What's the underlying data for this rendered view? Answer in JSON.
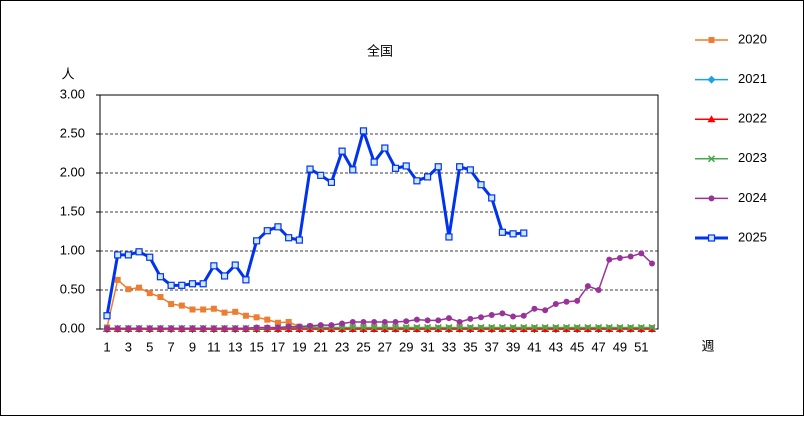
{
  "chart_data": {
    "type": "line",
    "title": "全国",
    "y_label": "人",
    "x_label": "週",
    "x": [
      1,
      2,
      3,
      4,
      5,
      6,
      7,
      8,
      9,
      10,
      11,
      12,
      13,
      14,
      15,
      16,
      17,
      18,
      19,
      20,
      21,
      22,
      23,
      24,
      25,
      26,
      27,
      28,
      29,
      30,
      31,
      32,
      33,
      34,
      35,
      36,
      37,
      38,
      39,
      40,
      41,
      42,
      43,
      44,
      45,
      46,
      47,
      48,
      49,
      50,
      51,
      52
    ],
    "xlim": [
      1,
      52
    ],
    "xticks": [
      1,
      3,
      5,
      7,
      9,
      11,
      13,
      15,
      17,
      19,
      21,
      23,
      25,
      27,
      29,
      31,
      33,
      35,
      37,
      39,
      41,
      43,
      45,
      47,
      49,
      51
    ],
    "ylim": [
      0,
      3
    ],
    "yticks": [
      {
        "value": 0,
        "label": "0.00"
      },
      {
        "value": 0.5,
        "label": "0.50"
      },
      {
        "value": 1,
        "label": "1.00"
      },
      {
        "value": 1.5,
        "label": "1.50"
      },
      {
        "value": 2,
        "label": "2.00"
      },
      {
        "value": 2.5,
        "label": "2.50"
      },
      {
        "value": 3,
        "label": "3.00"
      }
    ],
    "grid": true,
    "legend": "right",
    "series": [
      {
        "name": "2020",
        "color": "#ed7d31",
        "marker": "square",
        "values": [
          0.02,
          0.63,
          0.51,
          0.53,
          0.46,
          0.41,
          0.32,
          0.3,
          0.25,
          0.25,
          0.26,
          0.21,
          0.22,
          0.17,
          0.15,
          0.12,
          0.08,
          0.09,
          0.03,
          0.03,
          0.02,
          0.02,
          0.01,
          0.01,
          0.01,
          0.01,
          0.01,
          0.01,
          0.01,
          0.01,
          0.01,
          0.01,
          0.01,
          0.01,
          0.01,
          0.01,
          0.01,
          0.01,
          0.01,
          0.01,
          0.01,
          0.01,
          0.01,
          0.01,
          0.01,
          0.01,
          0.01,
          0.01,
          0.01,
          0.01,
          0.01,
          0.01
        ]
      },
      {
        "name": "2021",
        "color": "#1fa3e0",
        "marker": "diamond",
        "values": [
          0,
          0,
          0,
          0,
          0,
          0,
          0,
          0,
          0,
          0,
          0,
          0,
          0,
          0,
          0,
          0,
          0,
          0,
          0,
          0,
          0,
          0,
          0,
          0,
          0,
          0,
          0,
          0,
          0,
          0,
          0,
          0,
          0,
          0,
          0,
          0,
          0,
          0,
          0,
          0,
          0,
          0,
          0,
          0,
          0,
          0,
          0,
          0,
          0,
          0,
          0,
          0
        ]
      },
      {
        "name": "2022",
        "color": "#ff0000",
        "marker": "triangle",
        "values": [
          0,
          0,
          0,
          0,
          0,
          0,
          0,
          0,
          0,
          0,
          0,
          0,
          0,
          0,
          0,
          0,
          0,
          0,
          0,
          0,
          0,
          0,
          0,
          0,
          0,
          0,
          0,
          0,
          0,
          0,
          0,
          0,
          0,
          0,
          0,
          0,
          0,
          0,
          0,
          0,
          0,
          0,
          0,
          0,
          0,
          0,
          0,
          0,
          0,
          0,
          0,
          0
        ]
      },
      {
        "name": "2023",
        "color": "#4aa84a",
        "marker": "x",
        "values": [
          0.01,
          0.01,
          0.01,
          0.01,
          0.01,
          0.01,
          0.01,
          0.01,
          0.01,
          0.01,
          0.01,
          0.01,
          0.01,
          0.01,
          0.01,
          0.01,
          0.02,
          0.02,
          0.02,
          0.02,
          0.02,
          0.02,
          0.02,
          0.02,
          0.02,
          0.02,
          0.02,
          0.02,
          0.02,
          0.02,
          0.02,
          0.02,
          0.02,
          0.02,
          0.02,
          0.02,
          0.02,
          0.02,
          0.02,
          0.02,
          0.02,
          0.02,
          0.02,
          0.02,
          0.02,
          0.02,
          0.02,
          0.02,
          0.02,
          0.02,
          0.02,
          0.02
        ]
      },
      {
        "name": "2024",
        "color": "#993399",
        "marker": "circle",
        "values": [
          0.01,
          0.01,
          0.01,
          0.01,
          0.01,
          0.01,
          0.01,
          0.01,
          0.01,
          0.01,
          0.01,
          0.01,
          0.01,
          0.01,
          0.02,
          0.02,
          0.02,
          0.03,
          0.03,
          0.04,
          0.05,
          0.05,
          0.07,
          0.09,
          0.09,
          0.09,
          0.09,
          0.09,
          0.1,
          0.12,
          0.11,
          0.11,
          0.14,
          0.09,
          0.13,
          0.15,
          0.18,
          0.2,
          0.16,
          0.17,
          0.26,
          0.24,
          0.32,
          0.35,
          0.36,
          0.55,
          0.5,
          0.89,
          0.91,
          0.93,
          0.97,
          0.84
        ]
      },
      {
        "name": "2025",
        "color": "#0033ee",
        "marker": "square-open",
        "values": [
          0.17,
          0.95,
          0.95,
          0.99,
          0.92,
          0.67,
          0.56,
          0.56,
          0.58,
          0.58,
          0.81,
          0.68,
          0.82,
          0.63,
          1.13,
          1.26,
          1.31,
          1.17,
          1.14,
          2.05,
          1.97,
          1.88,
          2.28,
          2.04,
          2.54,
          2.14,
          2.32,
          2.06,
          2.09,
          1.9,
          1.95,
          2.08,
          1.18,
          2.08,
          2.04,
          1.85,
          1.68,
          1.24,
          1.22,
          1.23,
          null,
          null,
          null,
          null,
          null,
          null,
          null,
          null,
          null,
          null,
          null,
          null
        ]
      }
    ]
  }
}
